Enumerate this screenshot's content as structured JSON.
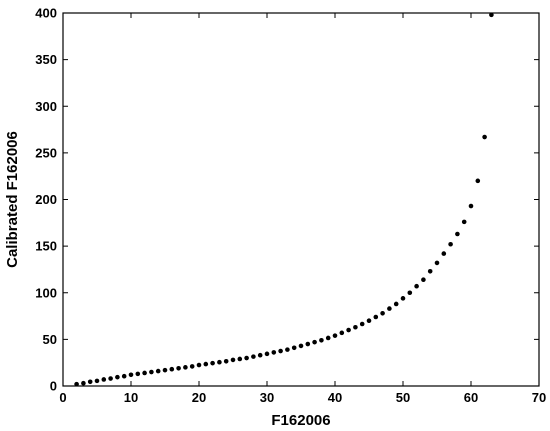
{
  "chart_data": {
    "type": "scatter",
    "title": "",
    "xlabel": "F162006",
    "ylabel": "Calibrated F162006",
    "xlim": [
      0,
      70
    ],
    "ylim": [
      0,
      400
    ],
    "xticks": [
      0,
      10,
      20,
      30,
      40,
      50,
      60,
      70
    ],
    "yticks": [
      0,
      50,
      100,
      150,
      200,
      250,
      300,
      350,
      400
    ],
    "grid": false,
    "legend": "none",
    "marker_color": "#000000",
    "series": [
      {
        "x": [
          2,
          3,
          4,
          5,
          6,
          7,
          8,
          9,
          10,
          11,
          12,
          13,
          14,
          15,
          16,
          17,
          18,
          19,
          20,
          21,
          22,
          23,
          24,
          25,
          26,
          27,
          28,
          29,
          30,
          31,
          32,
          33,
          34,
          35,
          36,
          37,
          38,
          39,
          40,
          41,
          42,
          43,
          44,
          45,
          46,
          47,
          48,
          49,
          50,
          51,
          52,
          53,
          54,
          55,
          56,
          57,
          58,
          59,
          60,
          61,
          62,
          63
        ],
        "y": [
          2,
          3,
          4.5,
          5.5,
          7,
          8,
          9.5,
          10.5,
          12,
          13,
          14,
          15,
          16,
          17,
          18,
          19,
          20,
          21,
          22.5,
          23.5,
          24.5,
          25.5,
          26.5,
          28,
          29,
          30,
          31.5,
          33,
          34.5,
          36,
          37.5,
          39,
          41,
          43,
          45,
          47,
          49,
          51.5,
          54,
          57,
          60,
          63,
          66.5,
          70,
          74,
          78,
          83,
          88,
          94,
          100,
          107,
          114,
          123,
          132,
          142,
          152,
          163,
          176,
          193,
          220,
          267,
          398
        ]
      }
    ]
  }
}
